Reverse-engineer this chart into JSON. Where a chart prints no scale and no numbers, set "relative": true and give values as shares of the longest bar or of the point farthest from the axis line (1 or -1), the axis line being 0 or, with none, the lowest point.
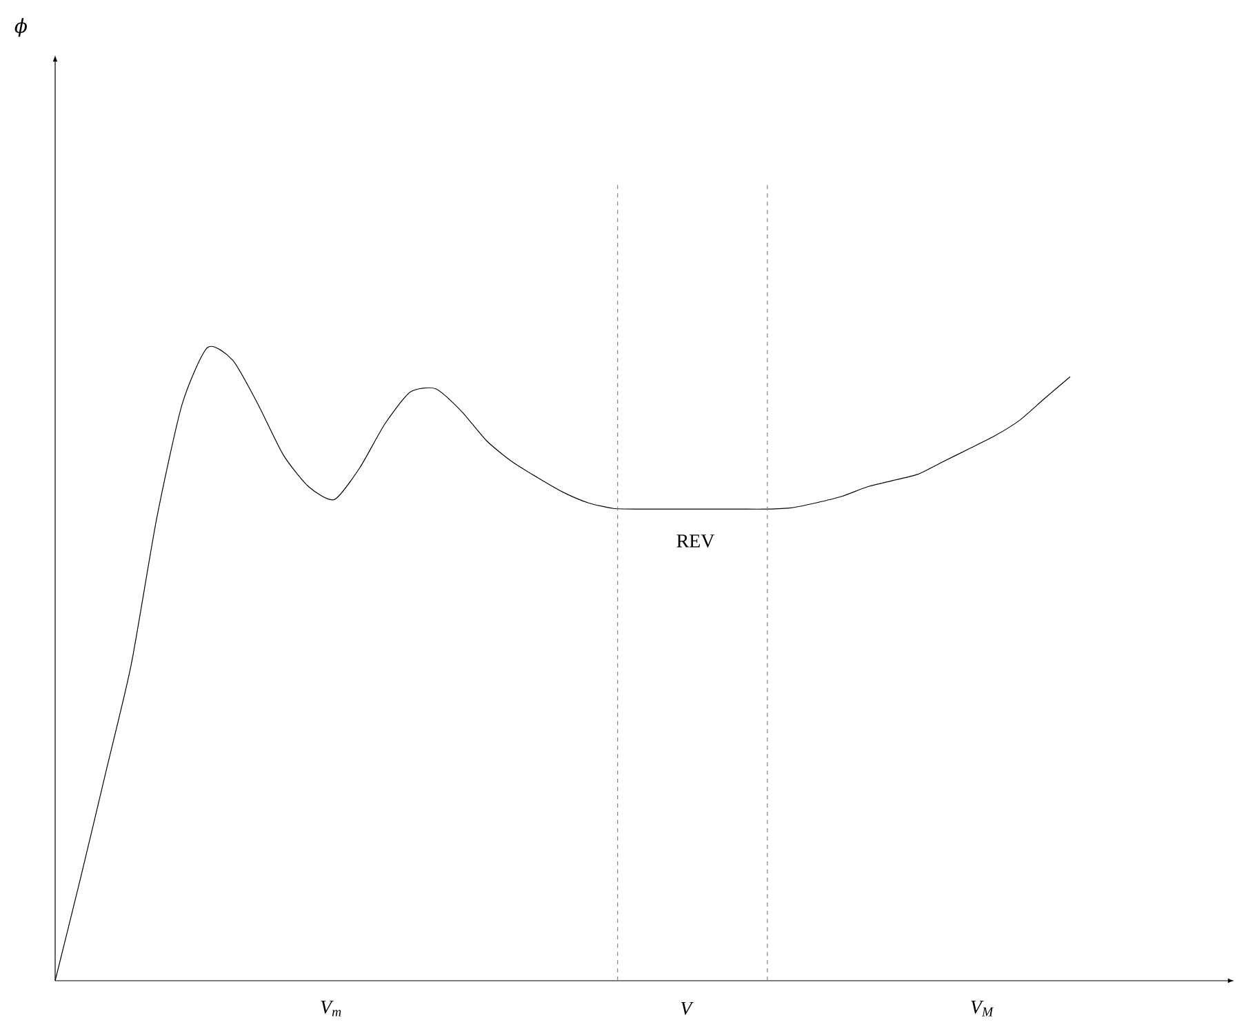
{
  "chart_data": {
    "type": "line",
    "relative": true,
    "line_style": "solid",
    "categories": [
      null,
      null,
      null,
      null,
      null,
      null,
      null,
      null,
      null,
      null,
      null,
      null,
      null,
      null,
      null,
      null,
      null,
      null,
      null,
      null,
      null,
      null,
      null,
      null,
      null,
      null,
      null,
      null,
      null,
      null,
      null,
      null,
      null,
      null,
      null,
      null,
      null,
      null,
      null,
      null,
      null
    ],
    "series": [
      {
        "color": "#000000",
        "values": [
          0,
          0.162,
          0.33,
          0.5,
          0.73,
          0.91,
          1,
          0.98,
          0.91,
          0.83,
          0.78,
          0.76,
          0.81,
          0.88,
          0.93,
          0.935,
          0.9,
          0.853,
          0.82,
          0.795,
          0.772,
          0.755,
          0.746,
          0.745,
          0.745,
          0.745,
          0.745,
          0.745,
          0.745,
          0.747,
          0.755,
          0.765,
          0.78,
          0.79,
          0.8,
          0.82,
          0.84,
          0.86,
          0.885,
          0.92,
          0.954
        ]
      }
    ],
    "annotations": [
      "V$_{m}$",
      "V",
      "V$_{M}$",
      "REV",
      "ϕ"
    ]
  }
}
